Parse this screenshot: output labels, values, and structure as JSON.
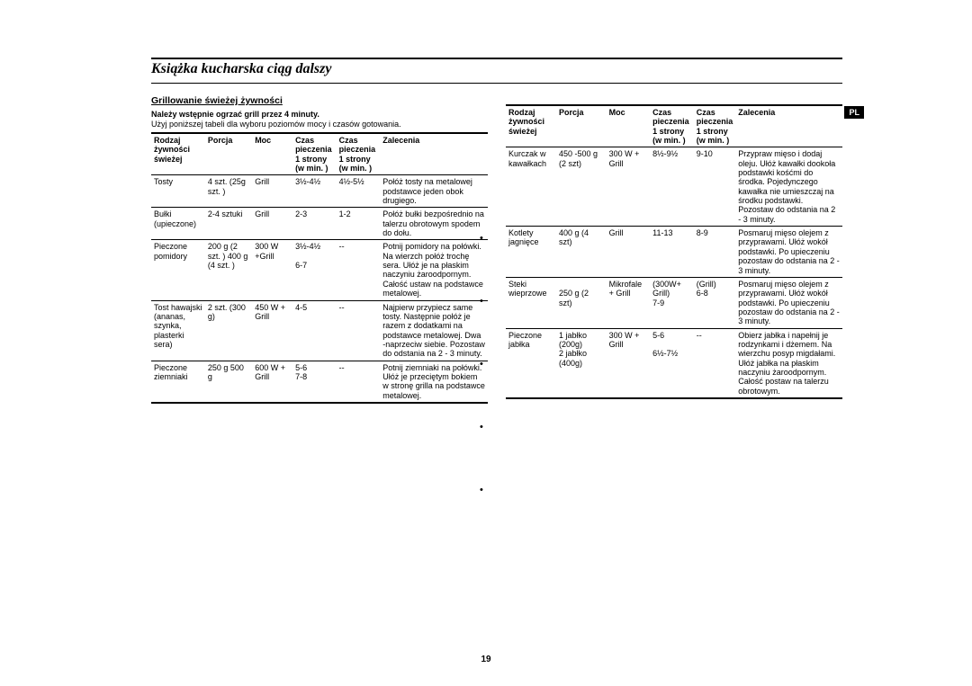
{
  "page": {
    "title": "Książka kucharska ciąg dalszy",
    "lang_tab": "PL",
    "page_number": "19"
  },
  "section": {
    "heading": "Grillowanie świeżej żywności",
    "note": "Należy wstępnie ogrzać grill przez 4 minuty.",
    "desc": "Użyj poniższej tabeli dla wyboru poziomów mocy i czasów gotowania."
  },
  "headers": {
    "food": "Rodzaj żywności świeżej",
    "portion": "Porcja",
    "power": "Moc",
    "time1": "Czas pieczenia 1 strony (w min. )",
    "time2": "Czas pieczenia 1 strony (w min. )",
    "rec": "Zalecenia"
  },
  "left_rows": [
    {
      "food": "Tosty",
      "portion": "4 szt. (25g szt. )",
      "power": "Grill",
      "t1": "3½-4½",
      "t2": "4½-5½",
      "rec": "Połóż tosty na metalowej podstawce jeden obok drugiego."
    },
    {
      "food": "Bułki (upieczone)",
      "portion": "2-4 sztuki",
      "power": "Grill",
      "t1": "2-3",
      "t2": "1-2",
      "rec": "Połóż bułki bezpośrednio na talerzu obrotowym spodem do dołu."
    },
    {
      "food": "Pieczone pomidory",
      "portion": "200 g (2 szt. ) 400 g (4 szt. )",
      "power": "300 W +Grill",
      "t1": "3½-4½\n\n6-7",
      "t2": "--",
      "rec": "Potnij pomidory na połówki. Na wierzch połóż trochę sera. Ułóż je na płaskim naczyniu żaroodpornym. Całość ustaw na podstawce metalowej."
    },
    {
      "food": "Tost hawajski (ananas, szynka, plasterki sera)",
      "portion": "2 szt. (300 g)",
      "power": "450 W + Grill",
      "t1": "4-5",
      "t2": "--",
      "rec": "Najpierw przypiecz same tosty. Następnie połóż je razem z dodatkami na podstawce metalowej. Dwa -naprzeciw siebie. Pozostaw do odstania na 2 - 3 minuty."
    },
    {
      "food": "Pieczone ziemniaki",
      "portion": "250 g 500 g",
      "power": "600 W + Grill",
      "t1": "5-6\n7-8",
      "t2": "--",
      "rec": "Potnij ziemniaki na połówki. Ułóż je przeciętym bokiem w stronę grilla na podstawce metalowej."
    }
  ],
  "right_rows": [
    {
      "food": "Kurczak w kawałkach",
      "portion": "450 -500 g (2 szt)",
      "power": "300 W + Grill",
      "t1": "8½-9½",
      "t2": "9-10",
      "rec": "Przypraw mięso i dodaj oleju. Ułóż kawałki dookoła podstawki kośćmi do środka. Pojedynczego kawałka nie umieszczaj na środku podstawki. Pozostaw do odstania na 2 - 3 minuty."
    },
    {
      "food": "Kotlety jagnięce",
      "portion": "400 g (4 szt)",
      "power": "Grill",
      "t1": "11-13",
      "t2": "8-9",
      "rec": "Posmaruj mięso olejem z przyprawami. Ułóż wokół podstawki. Po upieczeniu pozostaw do odstania na 2 - 3 minuty."
    },
    {
      "food": "Steki wieprzowe",
      "portion": "\n250 g (2 szt)",
      "power": "Mikrofale + Grill",
      "t1": "(300W+ Grill)\n7-9",
      "t2": "(Grill)\n6-8",
      "rec": "Posmaruj mięso olejem z przyprawami. Ułóż wokół podstawki. Po upieczeniu pozostaw do odstania na 2 - 3 minuty."
    },
    {
      "food": "Pieczone jabłka",
      "portion": "1 jabłko (200g)\n2 jabłko (400g)",
      "power": "300 W + Grill",
      "t1": "5-6\n\n6½-7½",
      "t2": "--",
      "rec": "Obierz jabłka i napełnij je rodzynkami i dżemem. Na wierzchu posyp migdałami. Ułóż jabłka na płaskim naczyniu żaroodpornym. Całość postaw na talerzu obrotowym."
    }
  ]
}
